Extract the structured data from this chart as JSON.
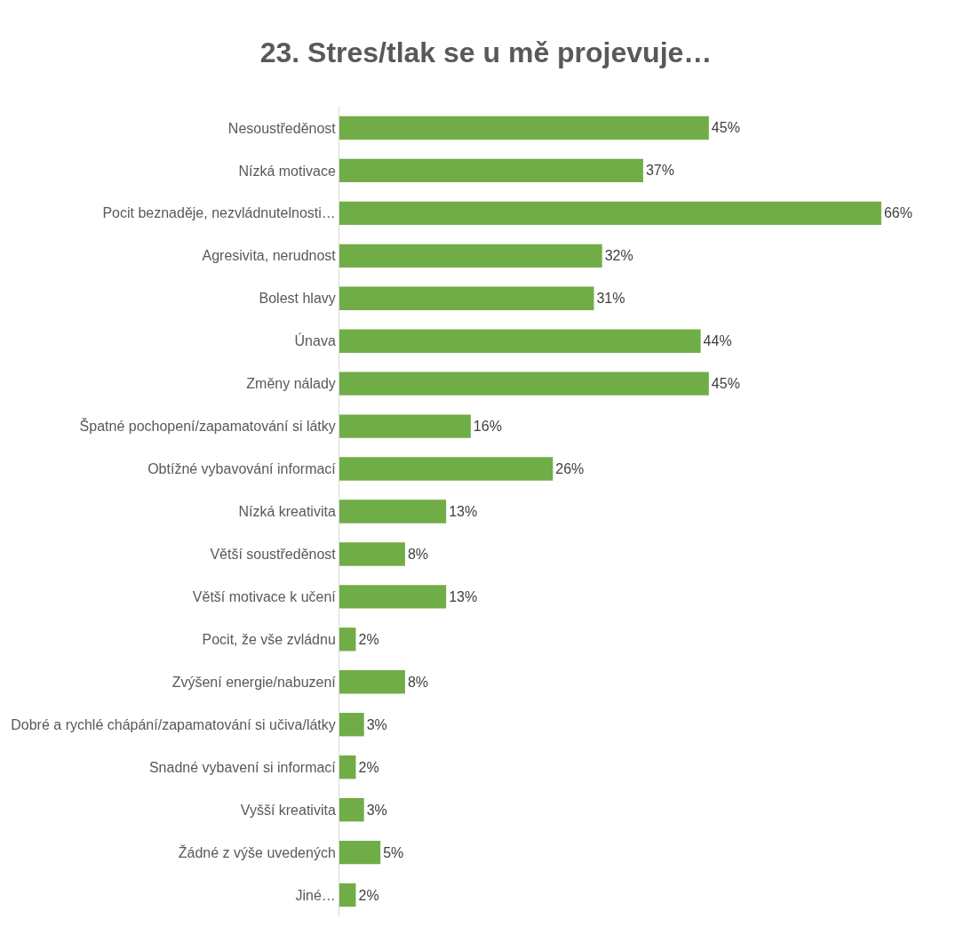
{
  "chart_data": {
    "type": "bar",
    "orientation": "horizontal",
    "title": "23. Stres/tlak se u mě projevuje…",
    "categories": [
      "Nesoustředěnost",
      "Nízká motivace",
      "Pocit beznaděje, nezvládnutelnosti…",
      "Agresivita, nerudnost",
      "Bolest hlavy",
      "Únava",
      "Změny nálady",
      "Špatné pochopení/zapamatování si látky",
      "Obtížné vybavování informací",
      "Nízká kreativita",
      "Větší soustředěnost",
      "Větší motivace k učení",
      "Pocit, že vše zvládnu",
      "Zvýšení energie/nabuzení",
      "Dobré a rychlé chápání/zapamatování si učiva/látky",
      "Snadné vybavení si informací",
      "Vyšší kreativita",
      "Žádné z výše uvedených",
      "Jiné…"
    ],
    "values": [
      45,
      37,
      66,
      32,
      31,
      44,
      45,
      16,
      26,
      13,
      8,
      13,
      2,
      8,
      3,
      2,
      3,
      5,
      2
    ],
    "value_labels": [
      "45%",
      "37%",
      "66%",
      "32%",
      "31%",
      "44%",
      "45%",
      "16%",
      "26%",
      "13%",
      "8%",
      "13%",
      "2%",
      "8%",
      "3%",
      "2%",
      "3%",
      "5%",
      "2%"
    ],
    "color": "#70ad47",
    "legend": false
  }
}
